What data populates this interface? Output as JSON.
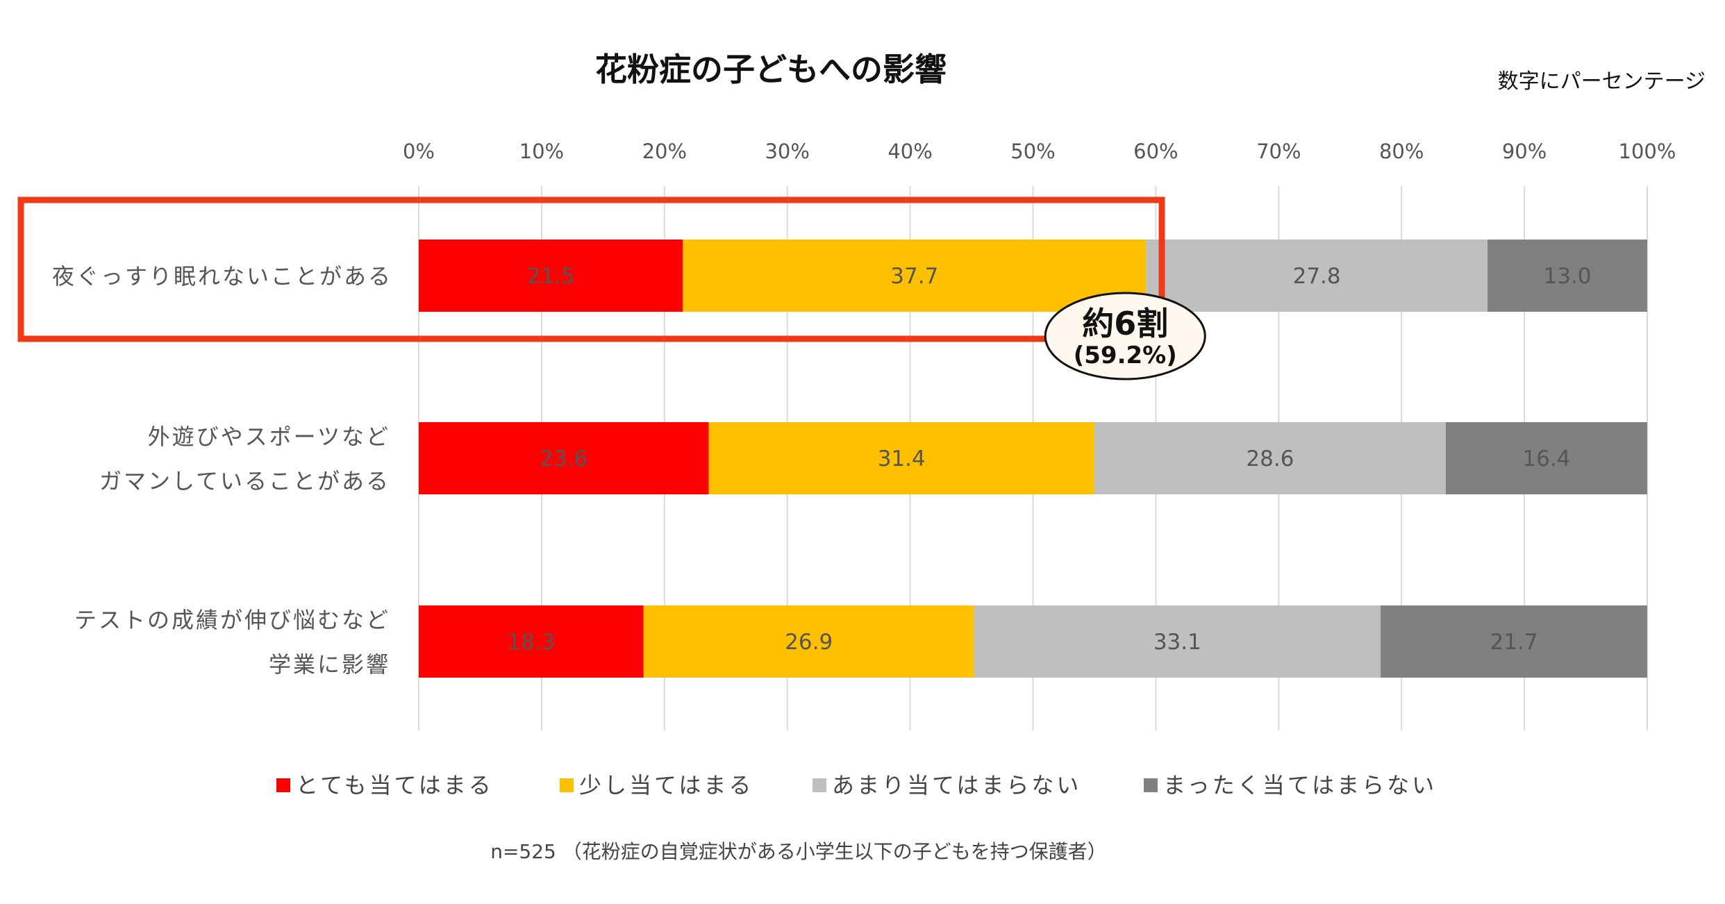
{
  "chart_data": {
    "type": "bar",
    "orientation": "horizontal",
    "stacked": true,
    "title": "花粉症の子どもへの影響",
    "unit_note": "数字にパーセンテージ",
    "x_ticks": [
      "0%",
      "10%",
      "20%",
      "30%",
      "40%",
      "50%",
      "60%",
      "70%",
      "80%",
      "90%",
      "100%"
    ],
    "xlim": [
      0,
      100
    ],
    "grid": true,
    "categories": [
      [
        "夜ぐっすり眠れないことがある"
      ],
      [
        "外遊びやスポーツなど",
        "ガマンしていることがある"
      ],
      [
        "テストの成績が伸び悩むなど",
        "学業に影響"
      ]
    ],
    "series": [
      {
        "name": "とても当てはまる",
        "color": "#FF0000",
        "values": [
          21.5,
          23.6,
          18.3
        ]
      },
      {
        "name": "少し当てはまる",
        "color": "#FFC000",
        "values": [
          37.7,
          31.4,
          26.9
        ]
      },
      {
        "name": "あまり当てはまらない",
        "color": "#BFBFBF",
        "values": [
          27.8,
          28.6,
          33.1
        ]
      },
      {
        "name": "まったく当てはまらない",
        "color": "#808080",
        "values": [
          13.0,
          16.4,
          21.7
        ]
      }
    ],
    "data_labels": [
      [
        "21.5",
        "37.7",
        "27.8",
        "13.0"
      ],
      [
        "23.6",
        "31.4",
        "28.6",
        "16.4"
      ],
      [
        "18.3",
        "26.9",
        "33.1",
        "21.7"
      ]
    ],
    "legend_position": "bottom",
    "highlight": {
      "category_index": 0,
      "color": "#F03A17",
      "callout_main": "約6割",
      "callout_sub": "(59.2%)",
      "callout_value": 59.2
    },
    "footnote": "n=525 （花粉症の自覚症状がある小学生以下の子どもを持つ保護者）"
  }
}
